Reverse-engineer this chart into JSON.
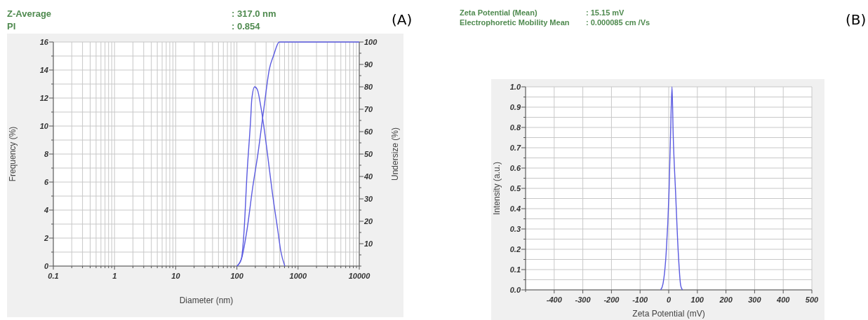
{
  "chart_data": [
    {
      "type": "line",
      "xlabel": "Diameter (nm)",
      "ylabel": "Frequency (%)",
      "y2label": "Undersize (%)",
      "log": "x",
      "grid": true,
      "marker": "none",
      "line_style": "solid",
      "annotations": [
        "Z-Average",
        ": 317.0 nm",
        "PI",
        ": 0.854",
        "(A)"
      ],
      "xlim": [
        0.1,
        10000
      ],
      "xticks": [
        {
          "value": 0.1,
          "label": "0.1"
        },
        {
          "value": 0.2,
          "label": null
        },
        {
          "value": 0.3,
          "label": null
        },
        {
          "value": 0.4,
          "label": null
        },
        {
          "value": 0.5,
          "label": null
        },
        {
          "value": 0.6,
          "label": null
        },
        {
          "value": 0.7,
          "label": null
        },
        {
          "value": 0.8,
          "label": null
        },
        {
          "value": 0.9,
          "label": null
        },
        1,
        {
          "value": 2,
          "label": null
        },
        {
          "value": 3,
          "label": null
        },
        {
          "value": 4,
          "label": null
        },
        {
          "value": 5,
          "label": null
        },
        {
          "value": 6,
          "label": null
        },
        {
          "value": 7,
          "label": null
        },
        {
          "value": 8,
          "label": null
        },
        {
          "value": 9,
          "label": null
        },
        10,
        {
          "value": 20,
          "label": null
        },
        {
          "value": 30,
          "label": null
        },
        {
          "value": 40,
          "label": null
        },
        {
          "value": 50,
          "label": null
        },
        {
          "value": 60,
          "label": null
        },
        {
          "value": 70,
          "label": null
        },
        {
          "value": 80,
          "label": null
        },
        {
          "value": 90,
          "label": null
        },
        100,
        {
          "value": 200,
          "label": null
        },
        {
          "value": 300,
          "label": null
        },
        {
          "value": 400,
          "label": null
        },
        {
          "value": 500,
          "label": null
        },
        {
          "value": 600,
          "label": null
        },
        {
          "value": 700,
          "label": null
        },
        {
          "value": 800,
          "label": null
        },
        {
          "value": 900,
          "label": null
        },
        1000,
        {
          "value": 2000,
          "label": null
        },
        {
          "value": 3000,
          "label": null
        },
        {
          "value": 4000,
          "label": null
        },
        {
          "value": 5000,
          "label": null
        },
        {
          "value": 6000,
          "label": null
        },
        {
          "value": 7000,
          "label": null
        },
        {
          "value": 8000,
          "label": null
        },
        {
          "value": 9000,
          "label": null
        },
        10000
      ],
      "ylim": [
        0,
        16
      ],
      "yticks": [
        0,
        {
          "value": 1,
          "label": null
        },
        2,
        {
          "value": 3,
          "label": null
        },
        4,
        {
          "value": 5,
          "label": null
        },
        6,
        {
          "value": 7,
          "label": null
        },
        8,
        {
          "value": 9,
          "label": null
        },
        10,
        {
          "value": 11,
          "label": null
        },
        12,
        {
          "value": 13,
          "label": null
        },
        14,
        {
          "value": 15,
          "label": null
        },
        16
      ],
      "y2lim": [
        0,
        100
      ],
      "y2ticks": [
        {
          "value": 0,
          "label": null
        },
        {
          "value": 5,
          "label": null
        },
        10,
        {
          "value": 15,
          "label": null
        },
        20,
        {
          "value": 25,
          "label": null
        },
        30,
        {
          "value": 35,
          "label": null
        },
        40,
        {
          "value": 45,
          "label": null
        },
        50,
        {
          "value": 55,
          "label": null
        },
        60,
        {
          "value": 65,
          "label": null
        },
        70,
        {
          "value": 75,
          "label": null
        },
        80,
        {
          "value": 85,
          "label": null
        },
        90,
        {
          "value": 95,
          "label": null
        },
        100
      ],
      "series": [
        {
          "color": "#5a5ae0",
          "x": [
            100,
            118,
            131,
            146,
            168,
            175,
            195,
            216,
            248,
            306,
            378,
            468,
            520,
            608
          ],
          "values": [
            0,
            0.5,
            2.5,
            6.5,
            10.5,
            11.9,
            12.8,
            12.6,
            11.3,
            8.5,
            5.3,
            2.5,
            1.1,
            0
          ]
        },
        {
          "color": "#5a5ae0",
          "axis": "y2",
          "x": [
            100,
            118,
            146,
            181,
            223,
            275,
            340,
            398,
            493,
            10000
          ],
          "values": [
            0,
            3,
            16,
            35,
            51,
            70,
            88,
            94,
            100,
            100
          ]
        }
      ]
    },
    {
      "type": "line",
      "xlabel": "Zeta Potential (mV)",
      "ylabel": "Intensity (a.u.)",
      "grid": true,
      "marker": "none",
      "line_style": "solid",
      "annotations": [
        "Zeta Potential (Mean)",
        ": 15.15 mV",
        "Electrophoretic Mobility Mean",
        ": 0.000085 cm  /Vs",
        "(B)"
      ],
      "xlim": [
        -500,
        500
      ],
      "xticks": [
        {
          "value": -500,
          "label": null
        },
        -400,
        -300,
        -200,
        -100,
        0,
        100,
        200,
        300,
        400,
        500
      ],
      "ylim": [
        0,
        1
      ],
      "yticks": [
        {
          "value": 0,
          "label": "0.0"
        },
        {
          "value": 0.05,
          "label": null
        },
        0.1,
        {
          "value": 0.15,
          "label": null
        },
        0.2,
        {
          "value": 0.25,
          "label": null
        },
        0.3,
        {
          "value": 0.35,
          "label": null
        },
        0.4,
        {
          "value": 0.45,
          "label": null
        },
        0.5,
        {
          "value": 0.55,
          "label": null
        },
        0.6,
        {
          "value": 0.65,
          "label": null
        },
        0.7,
        {
          "value": 0.75,
          "label": null
        },
        0.8,
        {
          "value": 0.85,
          "label": null
        },
        0.9,
        {
          "value": 0.95,
          "label": null
        },
        {
          "value": 1,
          "label": "1.0"
        }
      ],
      "series": [
        {
          "color": "#5a5ae0",
          "x": [
            -28,
            -20,
            -9,
            1,
            6.5,
            11.5,
            15.5,
            24,
            33.5,
            42,
            48
          ],
          "values": [
            0,
            0.03,
            0.18,
            0.48,
            0.77,
            1.0,
            0.77,
            0.48,
            0.18,
            0.02,
            0
          ]
        }
      ]
    }
  ]
}
